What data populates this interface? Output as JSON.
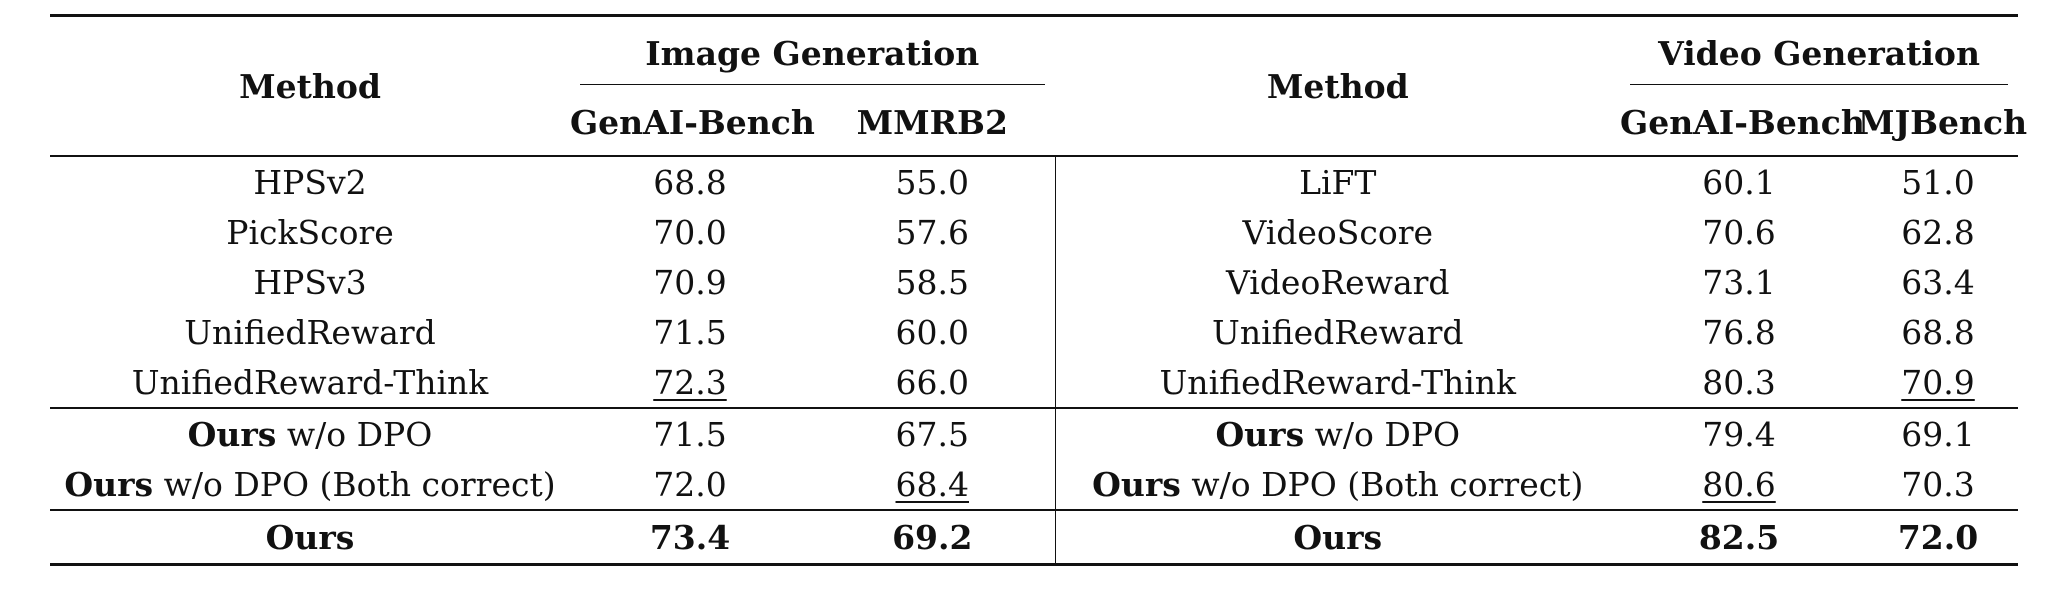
{
  "header": {
    "method_left": "Method",
    "method_right": "Method",
    "group_left": "Image Generation",
    "group_right": "Video Generation",
    "sub_left_1": "GenAI-Bench",
    "sub_left_2": "MMRB2",
    "sub_right_1": "GenAI-Bench",
    "sub_right_2": "MJBench"
  },
  "rows": [
    {
      "lm": "HPSv2",
      "l1": "68.8",
      "l2": "55.0",
      "rm": "LiFT",
      "r1": "60.1",
      "r2": "51.0"
    },
    {
      "lm": "PickScore",
      "l1": "70.0",
      "l2": "57.6",
      "rm": "VideoScore",
      "r1": "70.6",
      "r2": "62.8"
    },
    {
      "lm": "HPSv3",
      "l1": "70.9",
      "l2": "58.5",
      "rm": "VideoReward",
      "r1": "73.1",
      "r2": "63.4"
    },
    {
      "lm": "UnifiedReward",
      "l1": "71.5",
      "l2": "60.0",
      "rm": "UnifiedReward",
      "r1": "76.8",
      "r2": "68.8"
    },
    {
      "lm": "UnifiedReward-Think",
      "l1": "72.3",
      "l2": "66.0",
      "rm": "UnifiedReward-Think",
      "r1": "80.3",
      "r2": "70.9"
    },
    {
      "lm_bold": "Ours",
      "lm_rest": " w/o DPO",
      "l1": "71.5",
      "l2": "67.5",
      "rm_bold": "Ours",
      "rm_rest": " w/o DPO",
      "r1": "79.4",
      "r2": "69.1"
    },
    {
      "lm_bold": "Ours",
      "lm_rest": " w/o DPO (Both correct)",
      "l1": "72.0",
      "l2": "68.4",
      "rm_bold": "Ours",
      "rm_rest": " w/o DPO (Both correct)",
      "r1": "80.6",
      "r2": "70.3"
    },
    {
      "lm": "Ours",
      "l1": "73.4",
      "l2": "69.2",
      "rm": "Ours",
      "r1": "82.5",
      "r2": "72.0"
    }
  ]
}
